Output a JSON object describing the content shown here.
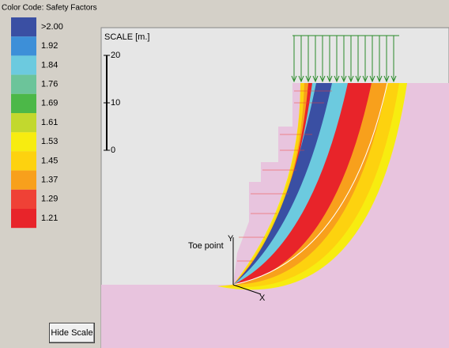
{
  "legend": {
    "title": "Color Code: Safety Factors",
    "items": [
      {
        "label": ">2.00",
        "color": "#3a4fa3"
      },
      {
        "label": "1.92",
        "color": "#3d8fd8"
      },
      {
        "label": "1.84",
        "color": "#6ccadf"
      },
      {
        "label": "1.76",
        "color": "#6cc49a"
      },
      {
        "label": "1.69",
        "color": "#4cb848"
      },
      {
        "label": "1.61",
        "color": "#c2d82e"
      },
      {
        "label": "1.53",
        "color": "#f7ec10"
      },
      {
        "label": "1.45",
        "color": "#fdd20f"
      },
      {
        "label": "1.37",
        "color": "#f8a01c"
      },
      {
        "label": "1.29",
        "color": "#ef4136"
      },
      {
        "label": "1.21",
        "color": "#e8242a"
      }
    ]
  },
  "scale": {
    "label": "SCALE [m.]",
    "ticks": [
      20,
      10,
      0
    ]
  },
  "annotations": {
    "toe": "Toe point",
    "y_axis": "Y",
    "x_axis": "X"
  },
  "button": "Hide Scale"
}
